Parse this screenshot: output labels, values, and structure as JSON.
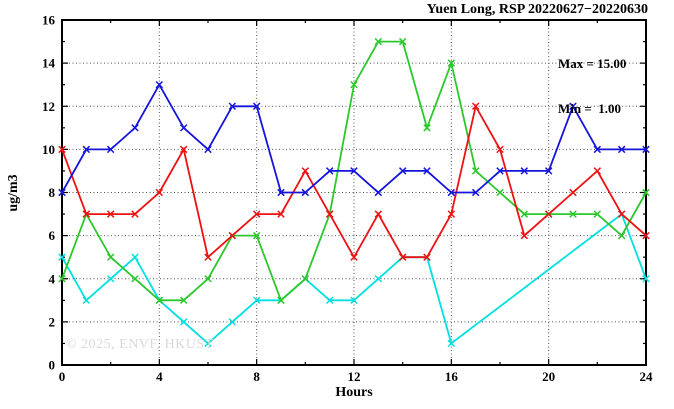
{
  "watermark": "© 2025, ENVF, HKUST",
  "chart_data": {
    "type": "line",
    "title": "Yuen Long, RSP 20220627−20220630",
    "xlabel": "Hours",
    "ylabel": "ug/m3",
    "xlim": [
      0,
      24
    ],
    "ylim": [
      0,
      16
    ],
    "xticks": [
      0,
      4,
      8,
      12,
      16,
      20,
      24
    ],
    "xtick_minor_step": 2,
    "yticks": [
      0,
      2,
      4,
      6,
      8,
      10,
      12,
      14,
      16
    ],
    "ytick_minor_step": 1,
    "grid": true,
    "legend": "none",
    "annotations": {
      "max": "Max = 15.00",
      "min": "Min =  1.00"
    },
    "x": [
      0,
      1,
      2,
      3,
      4,
      5,
      6,
      7,
      8,
      9,
      10,
      11,
      12,
      13,
      14,
      15,
      16,
      17,
      18,
      19,
      20,
      21,
      22,
      23,
      24
    ],
    "series": [
      {
        "name": "cyan-series",
        "color": "#00e0e0",
        "values": [
          5,
          3,
          4,
          5,
          3,
          2,
          1,
          2,
          3,
          3,
          4,
          3,
          3,
          4,
          5,
          5,
          1,
          null,
          null,
          null,
          null,
          null,
          null,
          7,
          4
        ]
      },
      {
        "name": "green-series",
        "color": "#2bc82b",
        "values": [
          4,
          7,
          5,
          4,
          3,
          3,
          4,
          6,
          6,
          3,
          4,
          7,
          13,
          15,
          15,
          11,
          14,
          9,
          8,
          7,
          7,
          7,
          7,
          6,
          8
        ]
      },
      {
        "name": "red-series",
        "color": "#ee1111",
        "values": [
          10,
          7,
          7,
          7,
          8,
          10,
          5,
          6,
          7,
          7,
          9,
          7,
          5,
          7,
          5,
          5,
          7,
          12,
          10,
          6,
          7,
          8,
          9,
          7,
          6
        ]
      },
      {
        "name": "blue-series",
        "color": "#1414dd",
        "values": [
          8,
          10,
          10,
          11,
          13,
          11,
          10,
          12,
          12,
          8,
          8,
          9,
          9,
          8,
          9,
          9,
          8,
          8,
          9,
          9,
          9,
          12,
          10,
          10,
          10
        ]
      }
    ]
  }
}
